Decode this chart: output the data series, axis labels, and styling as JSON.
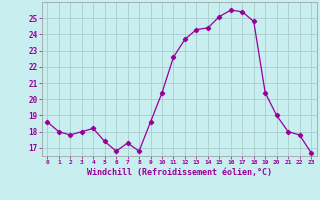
{
  "x": [
    0,
    1,
    2,
    3,
    4,
    5,
    6,
    7,
    8,
    9,
    10,
    11,
    12,
    13,
    14,
    15,
    16,
    17,
    18,
    19,
    20,
    21,
    22,
    23
  ],
  "y": [
    18.6,
    18.0,
    17.8,
    18.0,
    18.2,
    17.4,
    16.8,
    17.3,
    16.8,
    18.6,
    20.4,
    22.6,
    23.7,
    24.3,
    24.4,
    25.1,
    25.5,
    25.4,
    24.8,
    20.4,
    19.0,
    18.0,
    17.8,
    16.7
  ],
  "line_color": "#990099",
  "marker": "D",
  "marker_size": 2.2,
  "bg_color": "#c8eef0",
  "grid_color": "#aacccc",
  "xlabel": "Windchill (Refroidissement éolien,°C)",
  "xlabel_color": "#990099",
  "tick_color": "#990099",
  "ylim": [
    16.5,
    26.0
  ],
  "xlim": [
    -0.5,
    23.5
  ],
  "yticks": [
    17,
    18,
    19,
    20,
    21,
    22,
    23,
    24,
    25
  ],
  "xticks": [
    0,
    1,
    2,
    3,
    4,
    5,
    6,
    7,
    8,
    9,
    10,
    11,
    12,
    13,
    14,
    15,
    16,
    17,
    18,
    19,
    20,
    21,
    22,
    23
  ],
  "xtick_labels": [
    "0",
    "1",
    "2",
    "3",
    "4",
    "5",
    "6",
    "7",
    "8",
    "9",
    "10",
    "11",
    "12",
    "13",
    "14",
    "15",
    "16",
    "17",
    "18",
    "19",
    "20",
    "21",
    "22",
    "23"
  ],
  "ytick_labels": [
    "17",
    "18",
    "19",
    "20",
    "21",
    "22",
    "23",
    "24",
    "25"
  ]
}
